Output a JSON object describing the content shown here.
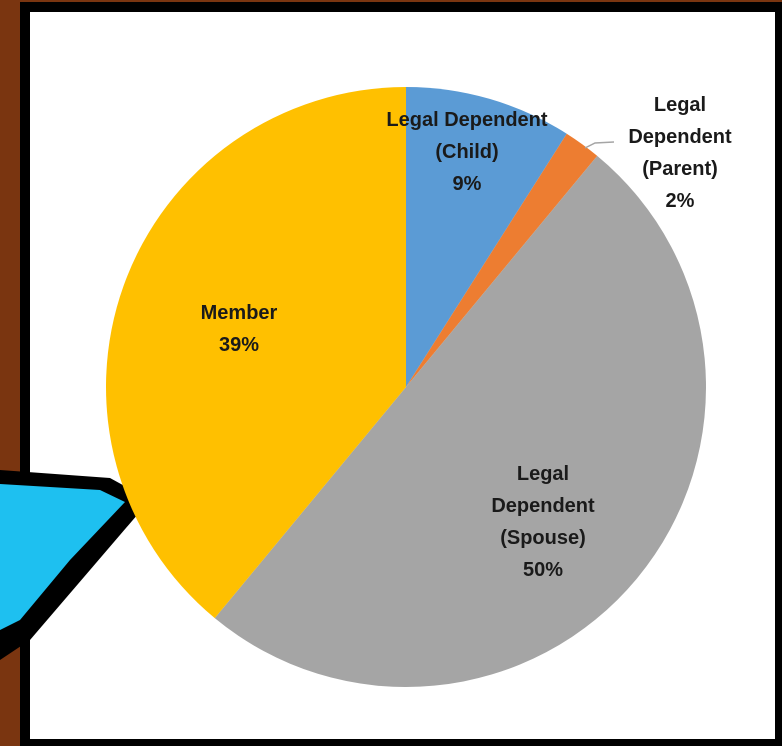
{
  "chart_data": {
    "type": "pie",
    "categories": [
      "Legal Dependent (Child)",
      "Legal Dependent (Parent)",
      "Legal Dependent (Spouse)",
      "Member"
    ],
    "values": [
      9,
      2,
      50,
      39
    ],
    "value_labels": [
      "9%",
      "2%",
      "50%",
      "39%"
    ],
    "colors": [
      "#5b9bd5",
      "#ed7d31",
      "#a5a5a5",
      "#ffc000"
    ]
  }
}
